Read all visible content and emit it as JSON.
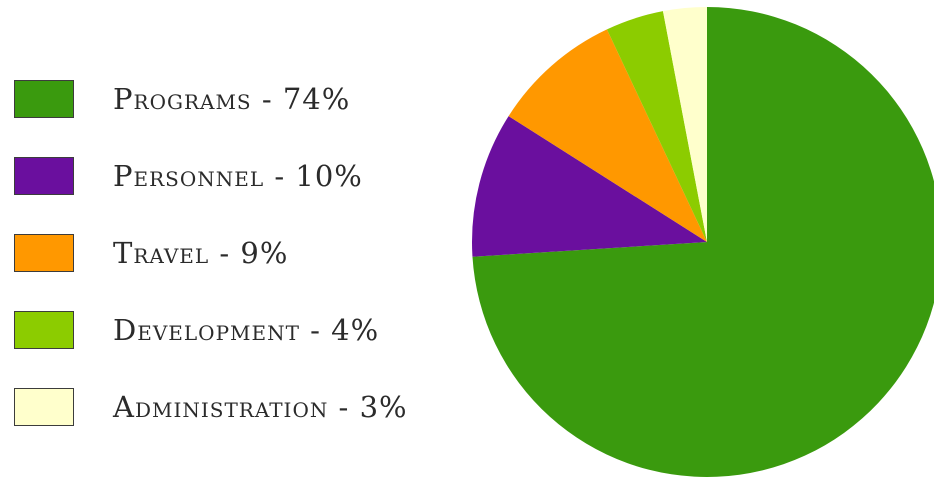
{
  "chart_data": {
    "type": "pie",
    "title": "",
    "slices": [
      {
        "name": "Programs",
        "value": 74,
        "label": "Programs - 74%",
        "color": "#3a9a0e"
      },
      {
        "name": "Personnel",
        "value": 10,
        "label": "Personnel - 10%",
        "color": "#6a0f9e"
      },
      {
        "name": "Travel",
        "value": 9,
        "label": "Travel - 9%",
        "color": "#ff9800"
      },
      {
        "name": "Development",
        "value": 4,
        "label": "Development - 4%",
        "color": "#8ccc00"
      },
      {
        "name": "Administration",
        "value": 3,
        "label": "Administration - 3%",
        "color": "#ffffcc"
      }
    ],
    "legend_position": "left",
    "start_angle": "top",
    "direction": "clockwise"
  }
}
